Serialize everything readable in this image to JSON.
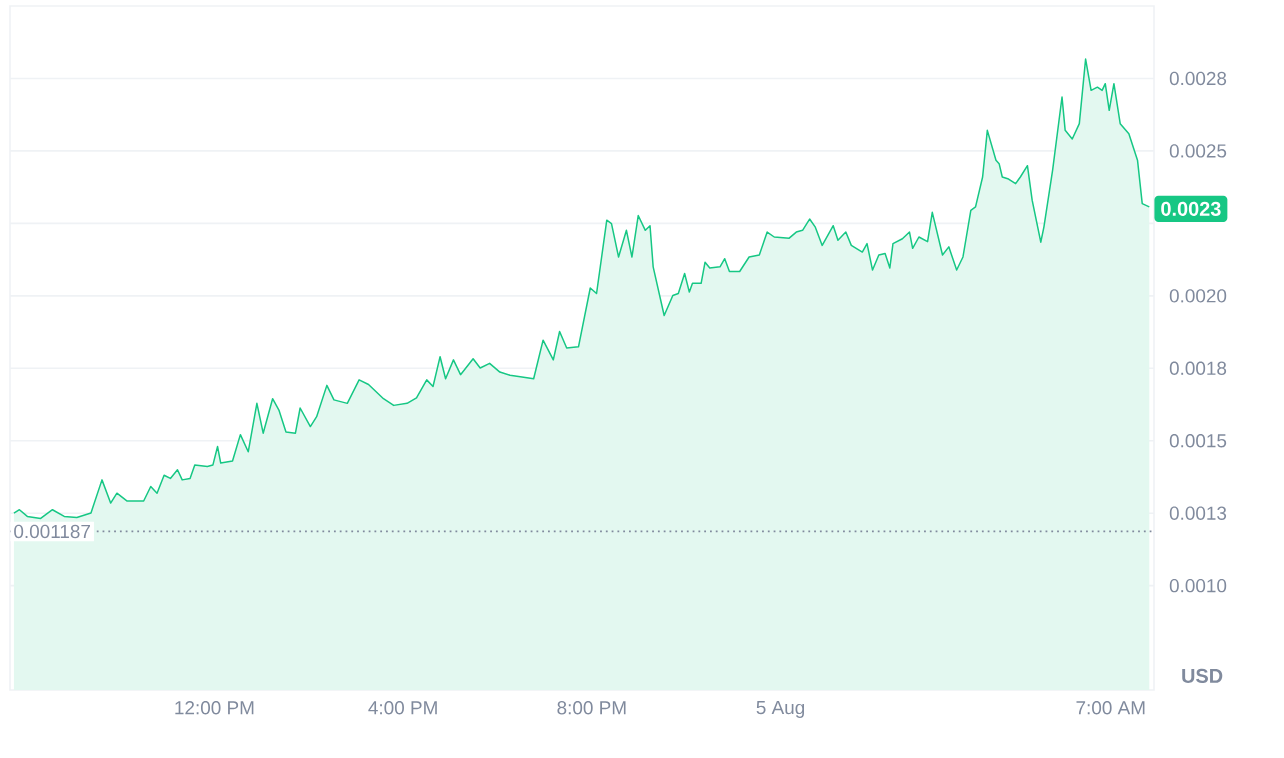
{
  "chart_data": {
    "type": "area",
    "ylabel": "USD",
    "x": [
      "--08-04T07:45",
      "--08-04T07:52",
      "--08-04T08:02",
      "--08-04T08:19",
      "--08-04T08:34",
      "--08-04T08:49",
      "--08-04T09:05",
      "--08-04T09:23",
      "--08-04T09:37",
      "--08-04T09:48",
      "--08-04T09:56",
      "--08-04T10:09",
      "--08-04T10:30",
      "--08-04T10:39",
      "--08-04T10:47",
      "--08-04T10:56",
      "--08-04T11:04",
      "--08-04T11:13",
      "--08-04T11:19",
      "--08-04T11:29",
      "--08-04T11:35",
      "--08-04T11:51",
      "--08-04T11:58",
      "--08-04T12:04",
      "--08-04T12:08",
      "--08-04T12:23",
      "--08-04T12:33",
      "--08-04T12:43",
      "--08-04T12:54",
      "--08-04T13:02",
      "--08-04T13:14",
      "--08-04T13:22",
      "--08-04T13:31",
      "--08-04T13:43",
      "--08-04T13:49",
      "--08-04T14:02",
      "--08-04T14:10",
      "--08-04T14:23",
      "--08-04T14:32",
      "--08-04T14:49",
      "--08-04T15:04",
      "--08-04T15:16",
      "--08-04T15:35",
      "--08-04T15:48",
      "--08-04T16:05",
      "--08-04T16:17",
      "--08-04T16:30",
      "--08-04T16:38",
      "--08-04T16:47",
      "--08-04T16:54",
      "--08-04T17:04",
      "--08-04T17:13",
      "--08-04T17:29",
      "--08-04T17:38",
      "--08-04T17:50",
      "--08-04T18:03",
      "--08-04T18:16",
      "--08-04T18:29",
      "--08-04T18:46",
      "--08-04T18:58",
      "--08-04T19:11",
      "--08-04T19:19",
      "--08-04T19:28",
      "--08-04T19:43",
      "--08-04T19:58",
      "--08-04T20:06",
      "--08-04T20:19",
      "--08-04T20:25",
      "--08-04T20:34",
      "--08-04T20:44",
      "--08-04T20:51",
      "--08-04T20:59",
      "--08-04T21:08",
      "--08-04T21:14",
      "--08-04T21:18",
      "--08-04T21:32",
      "--08-04T21:43",
      "--08-04T21:50",
      "--08-04T21:58",
      "--08-04T22:04",
      "--08-04T22:08",
      "--08-04T22:19",
      "--08-04T22:24",
      "--08-04T22:30",
      "--08-04T22:43",
      "--08-04T22:49",
      "--08-04T22:55",
      "--08-04T23:08",
      "--08-04T23:20",
      "--08-04T23:33",
      "--08-04T23:43",
      "--08-04T23:52",
      "--08-05T00:11",
      "--08-05T00:20",
      "--08-05T00:28",
      "--08-05T00:37",
      "--08-05T00:44",
      "--08-05T00:53",
      "--08-05T01:07",
      "--08-05T01:13",
      "--08-05T01:23",
      "--08-05T01:30",
      "--08-05T01:44",
      "--08-05T01:50",
      "--08-05T01:57",
      "--08-05T02:05",
      "--08-05T02:13",
      "--08-05T02:19",
      "--08-05T02:23",
      "--08-05T02:35",
      "--08-05T02:44",
      "--08-05T02:48",
      "--08-05T02:56",
      "--08-05T03:07",
      "--08-05T03:13",
      "--08-05T03:26",
      "--08-05T03:34",
      "--08-05T03:44",
      "--08-05T03:52",
      "--08-05T04:02",
      "--08-05T04:08",
      "--08-05T04:17",
      "--08-05T04:23",
      "--08-05T04:34",
      "--08-05T04:38",
      "--08-05T04:42",
      "--08-05T04:50",
      "--08-05T04:59",
      "--08-05T05:05",
      "--08-05T05:14",
      "--08-05T05:20",
      "--08-05T05:31",
      "--08-05T05:35",
      "--08-05T05:46",
      "--08-05T05:58",
      "--08-05T06:02",
      "--08-05T06:11",
      "--08-05T06:20",
      "--08-05T06:28",
      "--08-05T06:35",
      "--08-05T06:43",
      "--08-05T06:49",
      "--08-05T06:53",
      "--08-05T06:58",
      "--08-05T07:04",
      "--08-05T07:12",
      "--08-05T07:23",
      "--08-05T07:34",
      "--08-05T07:40",
      "--08-05T07:49"
    ],
    "series": [
      {
        "color": "#16c784",
        "values": [
          0.00125,
          0.001262,
          0.001239,
          0.001232,
          0.001262,
          0.001239,
          0.001235,
          0.001251,
          0.001365,
          0.001285,
          0.001319,
          0.001292,
          0.001292,
          0.001342,
          0.001319,
          0.001381,
          0.00137,
          0.0014,
          0.001365,
          0.00137,
          0.001416,
          0.001411,
          0.001416,
          0.00148,
          0.001423,
          0.00143,
          0.001521,
          0.001462,
          0.001629,
          0.001526,
          0.001645,
          0.001606,
          0.00153,
          0.001526,
          0.001613,
          0.001549,
          0.001583,
          0.001691,
          0.001641,
          0.001629,
          0.00171,
          0.001694,
          0.001645,
          0.001622,
          0.001629,
          0.001648,
          0.00171,
          0.001687,
          0.00179,
          0.001714,
          0.001779,
          0.001728,
          0.001783,
          0.001751,
          0.001767,
          0.001737,
          0.001726,
          0.001721,
          0.001714,
          0.001847,
          0.001779,
          0.001877,
          0.00182,
          0.001824,
          0.002027,
          0.002008,
          0.002261,
          0.002249,
          0.002134,
          0.002226,
          0.002134,
          0.002277,
          0.002226,
          0.002242,
          0.0021,
          0.001932,
          0.002001,
          0.002008,
          0.002077,
          0.002013,
          0.002043,
          0.002043,
          0.002116,
          0.002096,
          0.0021,
          0.002128,
          0.002084,
          0.002084,
          0.002134,
          0.002141,
          0.00222,
          0.002203,
          0.002199,
          0.00222,
          0.002226,
          0.002265,
          0.002238,
          0.002174,
          0.002242,
          0.002192,
          0.00222,
          0.002174,
          0.002151,
          0.00218,
          0.002089,
          0.002141,
          0.002146,
          0.002096,
          0.00218,
          0.002197,
          0.00222,
          0.002164,
          0.002203,
          0.002187,
          0.002288,
          0.002141,
          0.002169,
          0.002089,
          0.002134,
          0.002295,
          0.002307,
          0.00241,
          0.002571,
          0.002468,
          0.002456,
          0.00241,
          0.002403,
          0.002387,
          0.00241,
          0.002449,
          0.00233,
          0.002185,
          0.002238,
          0.002433,
          0.002686,
          0.002571,
          0.002541,
          0.002594,
          0.002817,
          0.002709,
          0.00272,
          0.002709,
          0.002732,
          0.00264,
          0.002732,
          0.002594,
          0.002559,
          0.002468,
          0.002318,
          0.002307
        ]
      }
    ],
    "xlim": [
      "--08-04T07:40",
      "--08-05T07:55"
    ],
    "xticks": [
      {
        "value": "--08-04T12:00",
        "label": "12:00 PM"
      },
      {
        "value": "--08-04T16:00",
        "label": "4:00 PM"
      },
      {
        "value": "--08-04T20:00",
        "label": "8:00 PM"
      },
      {
        "value": "--08-05T00:00",
        "label": "5 Aug"
      },
      {
        "value": "--08-05T07:00",
        "label": "7:00 AM"
      }
    ],
    "ylim": [
      0.00064,
      0.003
    ],
    "yticks": [
      {
        "value": 0.001,
        "label": "0.0010"
      },
      {
        "value": 0.00125,
        "label": "0.0013"
      },
      {
        "value": 0.0015,
        "label": "0.0015"
      },
      {
        "value": 0.00175,
        "label": "0.0018"
      },
      {
        "value": 0.002,
        "label": "0.0020"
      },
      {
        "value": 0.00225,
        "label": null
      },
      {
        "value": 0.0025,
        "label": "0.0025"
      },
      {
        "value": 0.00275,
        "label": "0.0028"
      }
    ],
    "ref_lines": [
      {
        "axis": "y",
        "value": 0.001187,
        "label": "0.001187",
        "line_style": "dotted",
        "color": "#808a9d"
      }
    ],
    "annotations": [
      {
        "text": "0.0023",
        "x": "--08-05T07:55",
        "y": 0.0023
      }
    ],
    "grid": "y",
    "marker": "none",
    "line_style": "solid"
  }
}
